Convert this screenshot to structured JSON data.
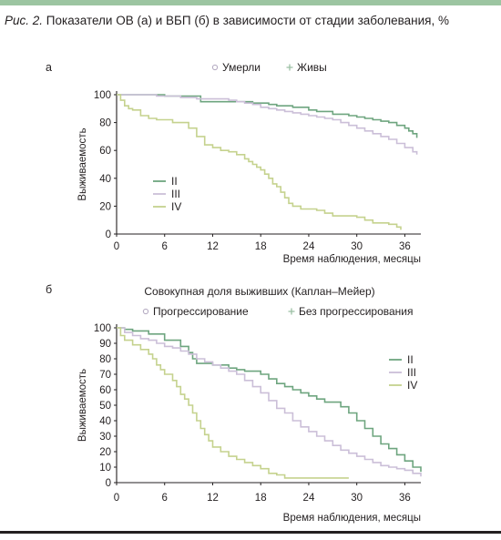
{
  "figure": {
    "title_lead": "Рис. 2.",
    "title_main": " Показатели ОВ (а) и ВБП (б) в зависимости от стадии заболевания, %"
  },
  "colors": {
    "II": "#6ea57f",
    "III": "#cbbfd8",
    "IV": "#c5d28e",
    "axis": "#231f20",
    "rule_top": "#9cc5a1"
  },
  "chart_data": [
    {
      "type": "line",
      "step": true,
      "panel_label": "а",
      "title": "",
      "xlabel": "Время наблюдения, месяцы",
      "ylabel": "Выживаемость",
      "xlim": [
        0,
        38
      ],
      "ylim": [
        0,
        100
      ],
      "xticks": [
        0,
        6,
        12,
        18,
        24,
        30,
        36
      ],
      "yticks": [
        0,
        20,
        40,
        60,
        80,
        100
      ],
      "legend_top": [
        "Умерли",
        "Живы"
      ],
      "legend_top_markers": [
        "dot",
        "plus"
      ],
      "legend_position": "left-middle",
      "series": [
        {
          "name": "II",
          "x": [
            0,
            4,
            6,
            10,
            10.5,
            14,
            17,
            19,
            20,
            22,
            24,
            25,
            27,
            29,
            30,
            31,
            32,
            33,
            34,
            35,
            36,
            36.5,
            37,
            37.5
          ],
          "y": [
            100,
            100,
            99,
            99,
            95,
            95,
            94,
            93,
            92,
            91,
            89,
            88,
            86,
            85,
            84,
            83,
            82,
            81,
            80,
            78,
            76,
            74,
            72,
            69
          ]
        },
        {
          "name": "III",
          "x": [
            0,
            2,
            5,
            8,
            10,
            12,
            14,
            15,
            16,
            17,
            18,
            19,
            20,
            21,
            22,
            23,
            24,
            25,
            26,
            27,
            28,
            29,
            30,
            31,
            32,
            33,
            34,
            35,
            36,
            37,
            37.5
          ],
          "y": [
            100,
            100,
            99,
            98,
            97,
            97,
            96,
            95,
            94,
            93,
            91,
            90,
            89,
            88,
            87,
            86,
            85,
            84,
            83,
            82,
            80,
            78,
            76,
            74,
            72,
            70,
            68,
            65,
            62,
            59,
            57
          ]
        },
        {
          "name": "IV",
          "x": [
            0,
            0.5,
            1,
            1.5,
            2,
            3,
            4,
            5,
            7,
            9,
            10,
            11,
            12,
            13,
            14,
            15,
            16,
            16.5,
            17,
            17.5,
            18,
            18.5,
            19,
            19.5,
            20,
            20.5,
            21,
            21.5,
            22,
            23,
            25,
            26,
            27,
            30,
            31,
            32,
            34,
            35,
            35.5
          ],
          "y": [
            100,
            96,
            92,
            90,
            89,
            85,
            83,
            82,
            80,
            76,
            70,
            64,
            62,
            60,
            59,
            57,
            54,
            52,
            50,
            48,
            46,
            43,
            40,
            36,
            34,
            30,
            26,
            22,
            20,
            18,
            17,
            15,
            13,
            12,
            10,
            8,
            7,
            5,
            3
          ]
        }
      ]
    },
    {
      "type": "line",
      "step": true,
      "panel_label": "б",
      "title": "Совокупная доля выживших (Каплан–Мейер)",
      "xlabel": "Время наблюдения, месяцы",
      "ylabel": "Выживаемость",
      "xlim": [
        0,
        38
      ],
      "ylim": [
        0,
        100
      ],
      "xticks": [
        0,
        6,
        12,
        18,
        24,
        30,
        36
      ],
      "yticks": [
        0,
        10,
        20,
        30,
        40,
        50,
        60,
        70,
        80,
        90,
        100
      ],
      "legend_top": [
        "Прогрессирование",
        "Без прогрессирования"
      ],
      "legend_top_markers": [
        "dot",
        "plus"
      ],
      "legend_position": "right-middle",
      "series": [
        {
          "name": "II",
          "x": [
            0,
            1,
            2,
            4,
            6,
            8,
            9,
            9.5,
            10,
            12,
            14,
            15,
            16,
            18,
            19,
            20,
            21,
            22,
            23,
            24,
            25,
            26,
            28,
            29,
            30,
            31,
            32,
            33,
            34,
            35,
            36,
            37,
            38
          ],
          "y": [
            100,
            99,
            98,
            96,
            92,
            88,
            84,
            80,
            77,
            76,
            74,
            73,
            72,
            70,
            67,
            64,
            62,
            60,
            58,
            56,
            54,
            52,
            49,
            45,
            40,
            35,
            30,
            25,
            22,
            18,
            14,
            10,
            7
          ]
        },
        {
          "name": "III",
          "x": [
            0,
            1,
            2,
            3,
            4,
            5,
            6,
            7,
            8,
            9,
            10,
            11,
            12,
            13,
            14,
            15,
            16,
            17,
            18,
            19,
            20,
            21,
            22,
            23,
            24,
            25,
            26,
            27,
            28,
            29,
            30,
            31,
            32,
            33,
            34,
            35,
            36,
            37,
            38
          ],
          "y": [
            100,
            97,
            95,
            93,
            92,
            90,
            88,
            87,
            85,
            83,
            80,
            78,
            76,
            74,
            72,
            70,
            66,
            62,
            58,
            53,
            48,
            45,
            40,
            36,
            33,
            30,
            27,
            24,
            21,
            19,
            17,
            15,
            13,
            11,
            10,
            9,
            8,
            6,
            4
          ]
        },
        {
          "name": "IV",
          "x": [
            0,
            0.5,
            1,
            2,
            3,
            4,
            4.5,
            5,
            5.5,
            6,
            7,
            7.5,
            8,
            8.5,
            9,
            9.5,
            10,
            10.5,
            11,
            11.5,
            12,
            13,
            14,
            15,
            16,
            17,
            18,
            19,
            20,
            21,
            29
          ],
          "y": [
            100,
            95,
            92,
            89,
            86,
            83,
            80,
            76,
            73,
            70,
            66,
            62,
            57,
            54,
            50,
            45,
            40,
            35,
            31,
            27,
            23,
            20,
            17,
            15,
            13,
            11,
            9,
            6,
            5,
            3,
            3
          ]
        }
      ]
    }
  ]
}
